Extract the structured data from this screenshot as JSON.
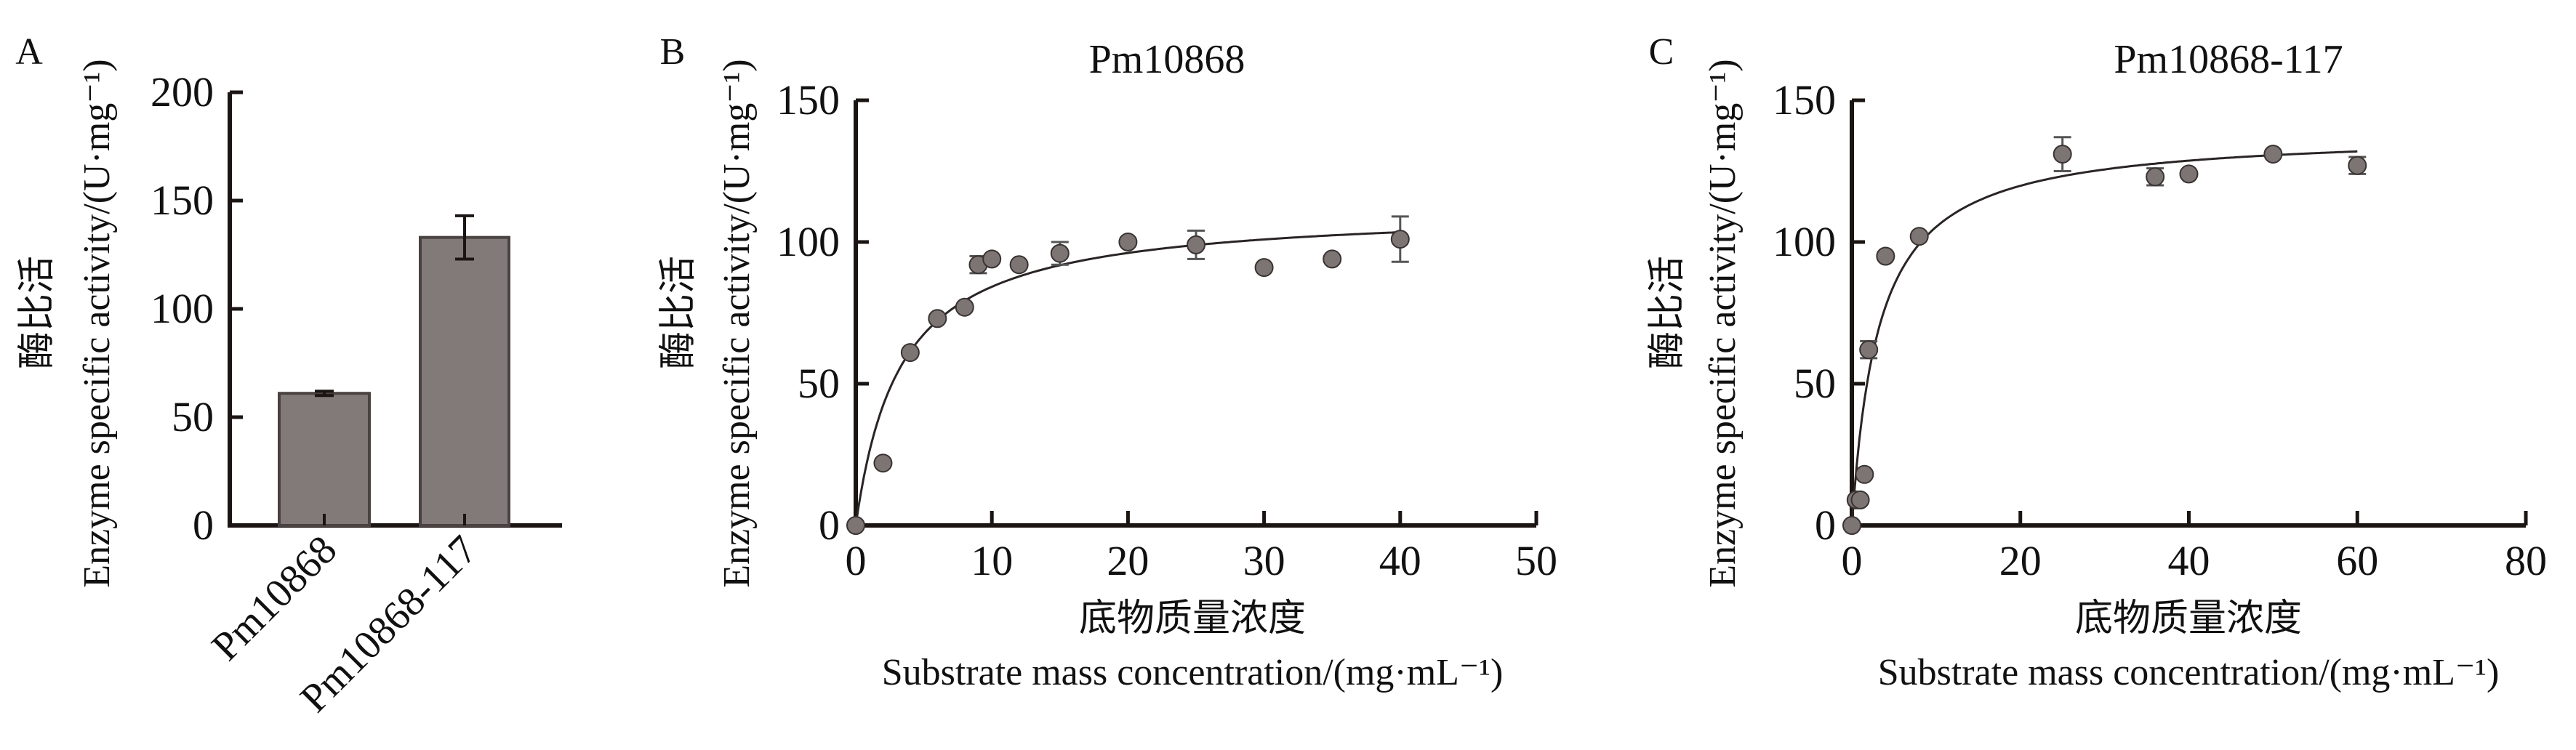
{
  "colors": {
    "bar_fill": "#827a78",
    "bar_stroke": "#4a4240",
    "point_fill": "#7d7573",
    "point_stroke": "#3a3333",
    "axis": "#1a1412"
  },
  "chart_data": [
    {
      "panel": "A",
      "type": "bar",
      "title": "",
      "ylabel_cn": "酶比活",
      "ylabel": "Enzyme specific activity/(U·mg⁻¹)",
      "categories": [
        "Pm10868",
        "Pm10868-117"
      ],
      "values": [
        61,
        133
      ],
      "errors": [
        1,
        10
      ],
      "ylim": [
        0,
        200
      ],
      "yticks": [
        "0",
        "50",
        "100",
        "150",
        "200"
      ],
      "grid": false
    },
    {
      "panel": "B",
      "type": "scatter",
      "title": "Pm10868",
      "ylabel_cn": "酶比活",
      "ylabel": "Enzyme specific activity/(U·mg⁻¹)",
      "xlabel_cn": "底物质量浓度",
      "xlabel": "Substrate mass concentration/(mg·mL⁻¹)",
      "xlim": [
        0,
        50
      ],
      "ylim": [
        0,
        150
      ],
      "xticks": [
        "0",
        "10",
        "20",
        "30",
        "40",
        "50"
      ],
      "yticks": [
        "0",
        "50",
        "100",
        "150"
      ],
      "points": [
        {
          "x": 0,
          "y": 0
        },
        {
          "x": 2,
          "y": 22
        },
        {
          "x": 4,
          "y": 61
        },
        {
          "x": 6,
          "y": 73
        },
        {
          "x": 8,
          "y": 77
        },
        {
          "x": 9,
          "y": 92,
          "err": 3
        },
        {
          "x": 10,
          "y": 94
        },
        {
          "x": 12,
          "y": 92
        },
        {
          "x": 15,
          "y": 96,
          "err": 4
        },
        {
          "x": 20,
          "y": 100
        },
        {
          "x": 25,
          "y": 99,
          "err": 5
        },
        {
          "x": 30,
          "y": 91
        },
        {
          "x": 35,
          "y": 94
        },
        {
          "x": 40,
          "y": 101,
          "err": 8
        }
      ],
      "fit": {
        "model": "Michaelis-Menten",
        "vmax": 112,
        "km": 3.3,
        "x_range": [
          0,
          40
        ]
      },
      "grid": false
    },
    {
      "panel": "C",
      "type": "scatter",
      "title": "Pm10868-117",
      "ylabel_cn": "酶比活",
      "ylabel": "Enzyme  specific  activity/(U·mg⁻¹)",
      "xlabel_cn": "底物质量浓度",
      "xlabel": "Substrate mass concentration/(mg·mL⁻¹)",
      "xlim": [
        0,
        80
      ],
      "ylim": [
        0,
        150
      ],
      "xticks": [
        "0",
        "20",
        "40",
        "60",
        "80"
      ],
      "yticks": [
        "0",
        "50",
        "100",
        "150"
      ],
      "points": [
        {
          "x": 0,
          "y": 0
        },
        {
          "x": 0.5,
          "y": 9
        },
        {
          "x": 1,
          "y": 9
        },
        {
          "x": 1.5,
          "y": 18
        },
        {
          "x": 2,
          "y": 62,
          "err": 3
        },
        {
          "x": 4,
          "y": 95
        },
        {
          "x": 8,
          "y": 102
        },
        {
          "x": 25,
          "y": 131,
          "err": 6
        },
        {
          "x": 36,
          "y": 123,
          "err": 3
        },
        {
          "x": 40,
          "y": 124
        },
        {
          "x": 50,
          "y": 131
        },
        {
          "x": 60,
          "y": 127,
          "err": 3
        }
      ],
      "fit": {
        "model": "Michaelis-Menten",
        "vmax": 139,
        "km": 3.2,
        "x_range": [
          0,
          60
        ]
      },
      "grid": false
    }
  ]
}
